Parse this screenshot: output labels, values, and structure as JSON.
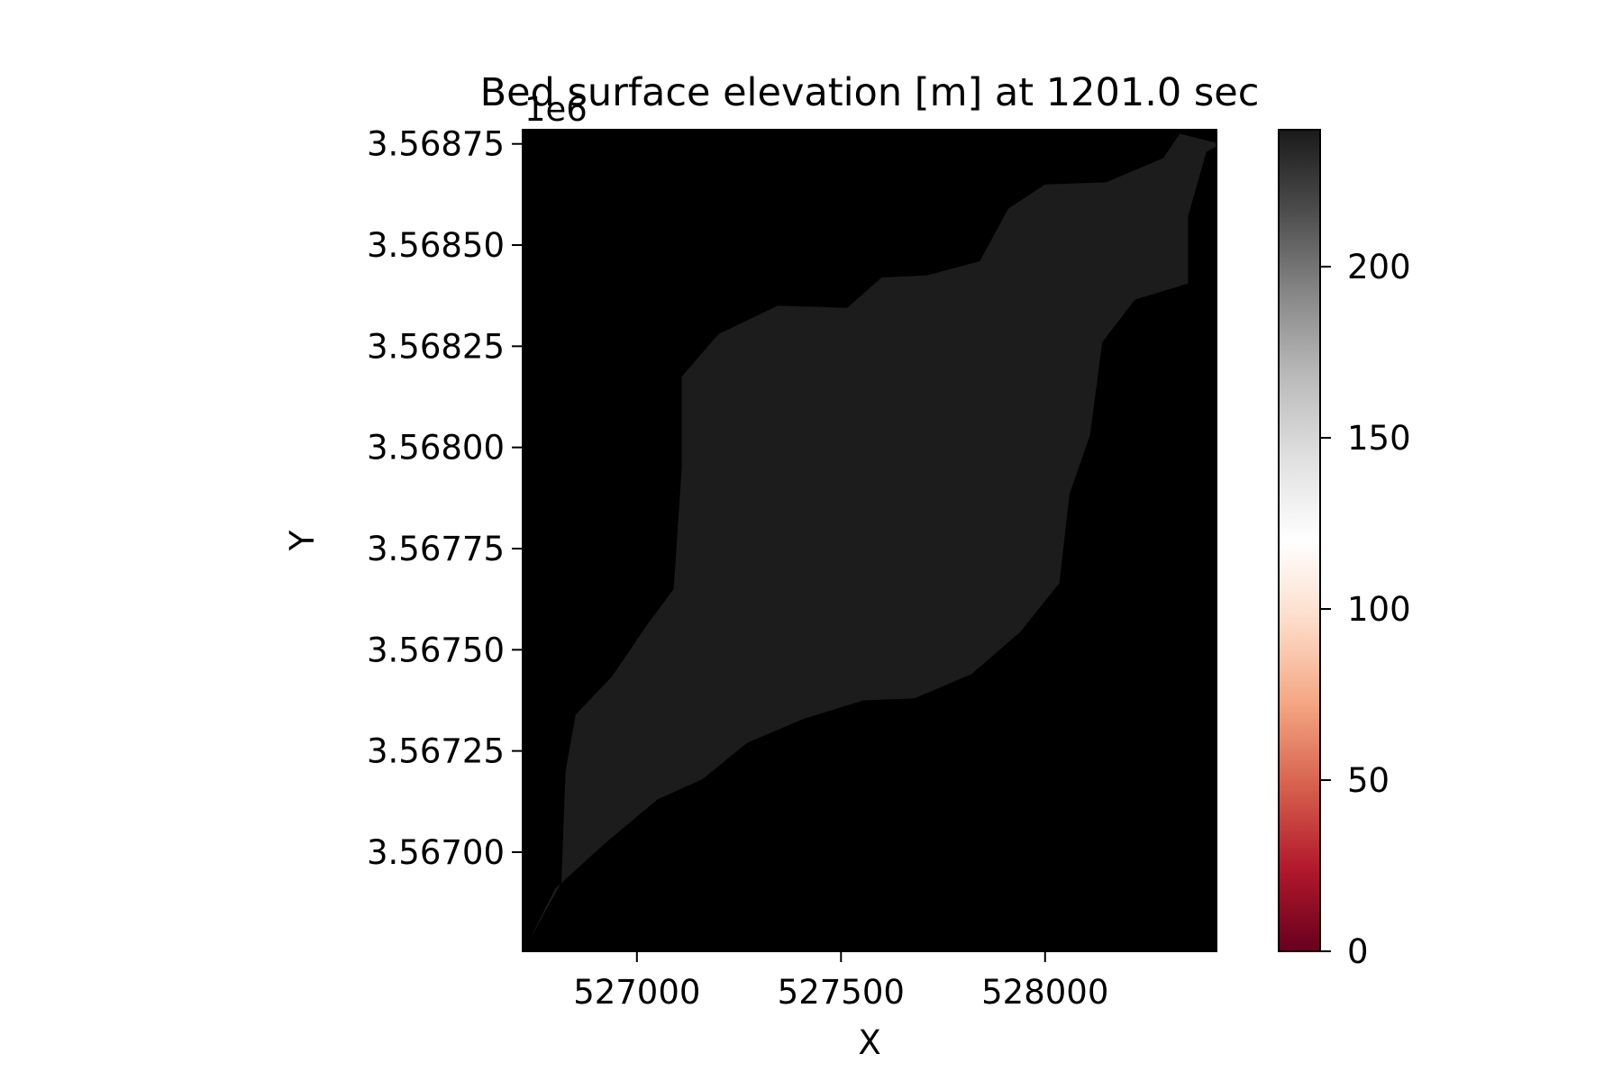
{
  "chart_data": {
    "type": "heatmap",
    "title": "Bed surface elevation [m] at 1201.0 sec",
    "xlabel": "X",
    "ylabel": "Y",
    "y_offset_label": "1e6",
    "xlim": [
      526720,
      528420
    ],
    "ylim": [
      3566755,
      3568785
    ],
    "x_ticks": [
      527000,
      527500,
      528000
    ],
    "x_tick_labels": [
      "527000",
      "527500",
      "528000"
    ],
    "y_ticks": [
      3567000,
      3567250,
      3567500,
      3567750,
      3568000,
      3568250,
      3568500,
      3568750
    ],
    "y_tick_labels": [
      "3.56700",
      "3.56725",
      "3.56750",
      "3.56775",
      "3.56800",
      "3.56825",
      "3.56850",
      "3.56875"
    ],
    "background_value": 0,
    "domain_value": 0,
    "domain_outline": [
      [
        526735,
        3566780
      ],
      [
        526800,
        3566910
      ],
      [
        526920,
        3567020
      ],
      [
        527050,
        3567130
      ],
      [
        527160,
        3567180
      ],
      [
        527270,
        3567270
      ],
      [
        527410,
        3567330
      ],
      [
        527555,
        3567375
      ],
      [
        527680,
        3567380
      ],
      [
        527820,
        3567440
      ],
      [
        527940,
        3567545
      ],
      [
        528035,
        3567665
      ],
      [
        528060,
        3567885
      ],
      [
        528110,
        3568030
      ],
      [
        528140,
        3568260
      ],
      [
        528220,
        3568365
      ],
      [
        528350,
        3568405
      ],
      [
        528350,
        3568570
      ],
      [
        528395,
        3568730
      ],
      [
        528430,
        3568750
      ],
      [
        528330,
        3568775
      ],
      [
        528290,
        3568715
      ],
      [
        528150,
        3568655
      ],
      [
        528000,
        3568650
      ],
      [
        527910,
        3568590
      ],
      [
        527840,
        3568460
      ],
      [
        527710,
        3568425
      ],
      [
        527600,
        3568420
      ],
      [
        527515,
        3568345
      ],
      [
        527345,
        3568350
      ],
      [
        527200,
        3568280
      ],
      [
        527110,
        3568175
      ],
      [
        527110,
        3567950
      ],
      [
        527090,
        3567650
      ],
      [
        527020,
        3567555
      ],
      [
        526940,
        3567435
      ],
      [
        526850,
        3567340
      ],
      [
        526825,
        3567200
      ],
      [
        526815,
        3566925
      ],
      [
        526735,
        3566780
      ]
    ],
    "colorbar": {
      "colormap": "RdGy",
      "range": [
        0,
        240
      ],
      "ticks": [
        0,
        50,
        100,
        150,
        200
      ],
      "tick_labels": [
        "0",
        "50",
        "100",
        "150",
        "200"
      ]
    }
  }
}
